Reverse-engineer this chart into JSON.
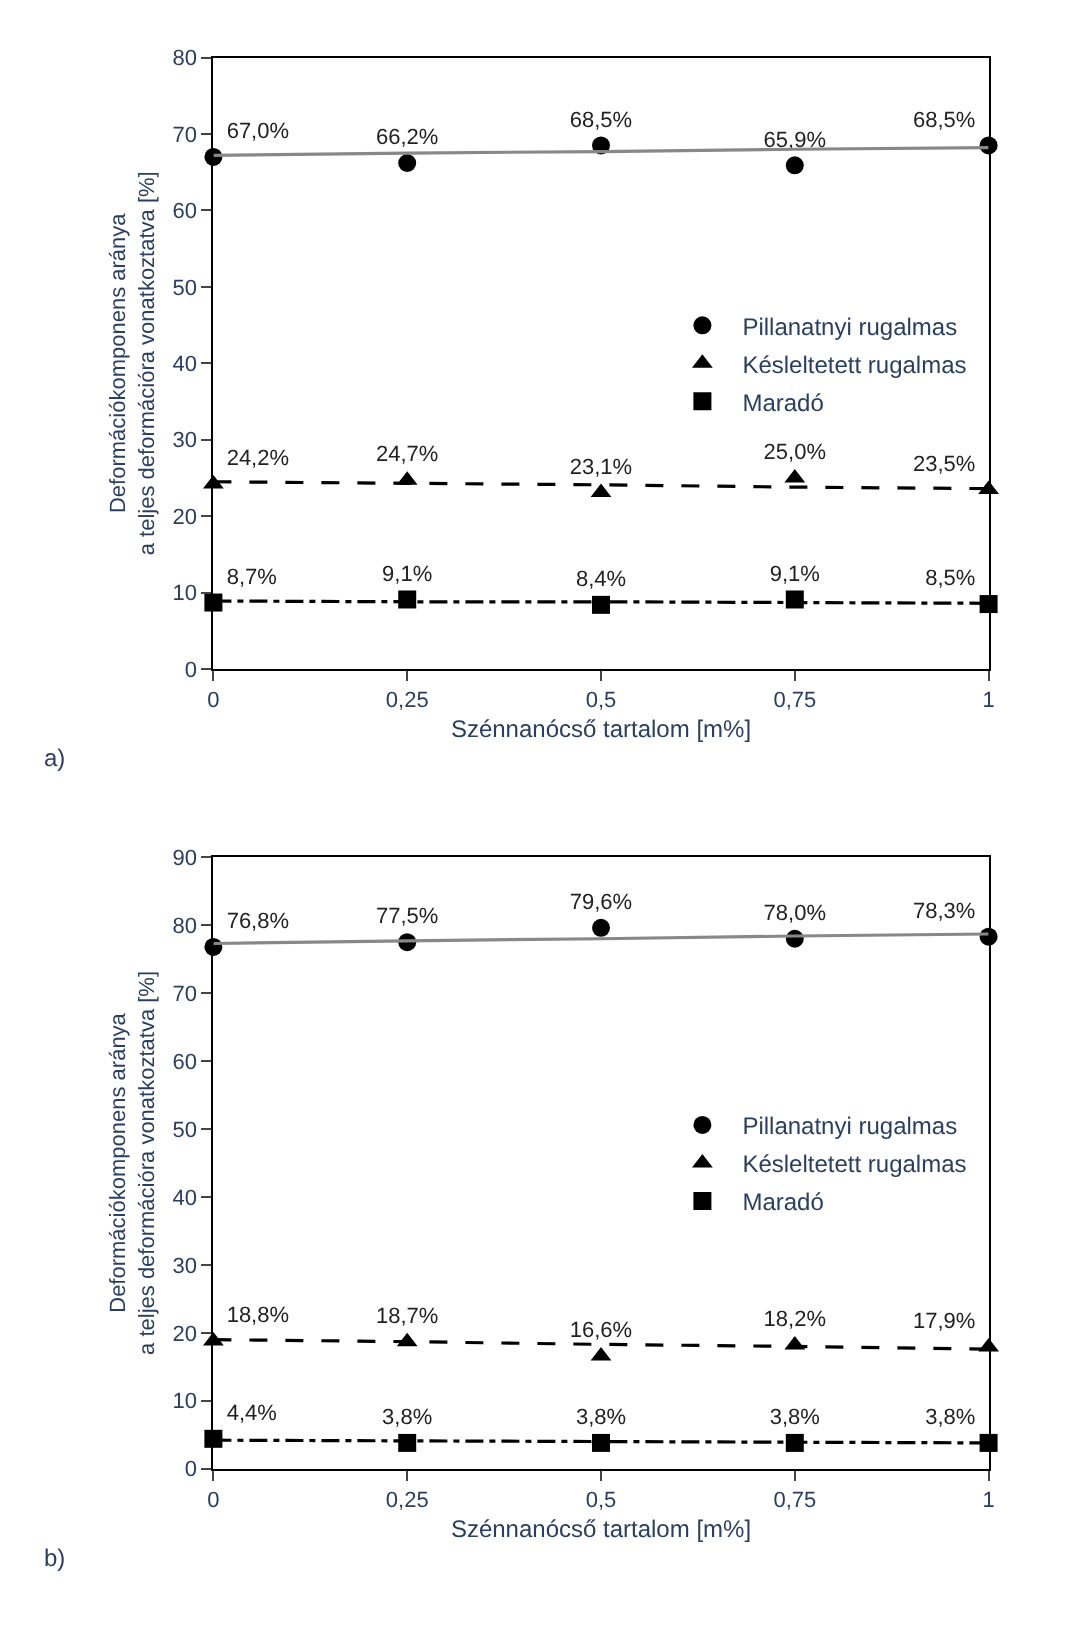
{
  "chart_data": [
    {
      "type": "scatter",
      "xlabel": "Szénnanócső tartalom [m%]",
      "ylabel": "Deformációkomponens aránya\na teljes deformációra vonatkoztatva [%]",
      "annotations": [
        "a)"
      ],
      "x": [
        0,
        0.25,
        0.5,
        0.75,
        1
      ],
      "xlim": [
        0,
        1
      ],
      "xticks": [
        0,
        {
          "value": 0.25,
          "label": "0,25"
        },
        {
          "value": 0.5,
          "label": "0,5"
        },
        {
          "value": 0.75,
          "label": "0,75"
        },
        1
      ],
      "ylim": [
        0,
        80
      ],
      "yticks": [
        0,
        10,
        20,
        30,
        40,
        50,
        60,
        70,
        80
      ],
      "grid": false,
      "legend": "right",
      "series": [
        {
          "name": "Pillanatnyi rugalmas",
          "color": "#000000",
          "marker": "circle",
          "values": [
            67.0,
            66.2,
            68.5,
            65.9,
            68.5
          ],
          "value_labels": [
            "67,0%",
            "66,2%",
            "68,5%",
            "65,9%",
            "68,5%"
          ]
        },
        {
          "name": "Késleltetett rugalmas",
          "color": "#000000",
          "marker": "triangle",
          "values": [
            24.2,
            24.7,
            23.1,
            25.0,
            23.5
          ],
          "value_labels": [
            "24,2%",
            "24,7%",
            "23,1%",
            "25,0%",
            "23,5%"
          ]
        },
        {
          "name": "Maradó",
          "color": "#000000",
          "marker": "square",
          "values": [
            8.7,
            9.1,
            8.4,
            9.1,
            8.5
          ],
          "value_labels": [
            "8,7%",
            "9,1%",
            "8,4%",
            "9,1%",
            "8,5%"
          ]
        },
        {
          "type": "line",
          "color": "#888888",
          "line_style": "solid",
          "values": [
            67.2,
            67.5,
            67.7,
            68.0,
            68.2
          ]
        },
        {
          "type": "line",
          "color": "#000000",
          "line_style": "dashed",
          "values": [
            24.5,
            24.3,
            24.1,
            23.8,
            23.6
          ]
        },
        {
          "type": "line",
          "color": "#000000",
          "line_style": "dashdot",
          "values": [
            8.9,
            8.8,
            8.8,
            8.7,
            8.6
          ]
        }
      ]
    },
    {
      "type": "scatter",
      "xlabel": "Szénnanócső tartalom [m%]",
      "ylabel": "Deformációkomponens aránya\na teljes deformációra vonatkoztatva [%]",
      "annotations": [
        "b)"
      ],
      "x": [
        0,
        0.25,
        0.5,
        0.75,
        1
      ],
      "xlim": [
        0,
        1
      ],
      "xticks": [
        0,
        {
          "value": 0.25,
          "label": "0,25"
        },
        {
          "value": 0.5,
          "label": "0,5"
        },
        {
          "value": 0.75,
          "label": "0,75"
        },
        1
      ],
      "ylim": [
        0,
        90
      ],
      "yticks": [
        0,
        10,
        20,
        30,
        40,
        50,
        60,
        70,
        80,
        90
      ],
      "grid": false,
      "legend": "right",
      "series": [
        {
          "name": "Pillanatnyi rugalmas",
          "color": "#000000",
          "marker": "circle",
          "values": [
            76.8,
            77.5,
            79.6,
            78.0,
            78.3
          ],
          "value_labels": [
            "76,8%",
            "77,5%",
            "79,6%",
            "78,0%",
            "78,3%"
          ]
        },
        {
          "name": "Késleltetett rugalmas",
          "color": "#000000",
          "marker": "triangle",
          "values": [
            18.8,
            18.7,
            16.6,
            18.2,
            17.9
          ],
          "value_labels": [
            "18,8%",
            "18,7%",
            "16,6%",
            "18,2%",
            "17,9%"
          ]
        },
        {
          "name": "Maradó",
          "color": "#000000",
          "marker": "square",
          "values": [
            4.4,
            3.8,
            3.8,
            3.8,
            3.8
          ],
          "value_labels": [
            "4,4%",
            "3,8%",
            "3,8%",
            "3,8%",
            "3,8%"
          ]
        },
        {
          "type": "line",
          "color": "#888888",
          "line_style": "solid",
          "values": [
            77.3,
            77.7,
            78.0,
            78.4,
            78.7
          ]
        },
        {
          "type": "line",
          "color": "#000000",
          "line_style": "dashed",
          "values": [
            19.0,
            18.7,
            18.3,
            18.0,
            17.6
          ]
        },
        {
          "type": "line",
          "color": "#000000",
          "line_style": "dashdot",
          "values": [
            4.2,
            4.1,
            4.0,
            3.9,
            3.8
          ]
        }
      ]
    }
  ]
}
